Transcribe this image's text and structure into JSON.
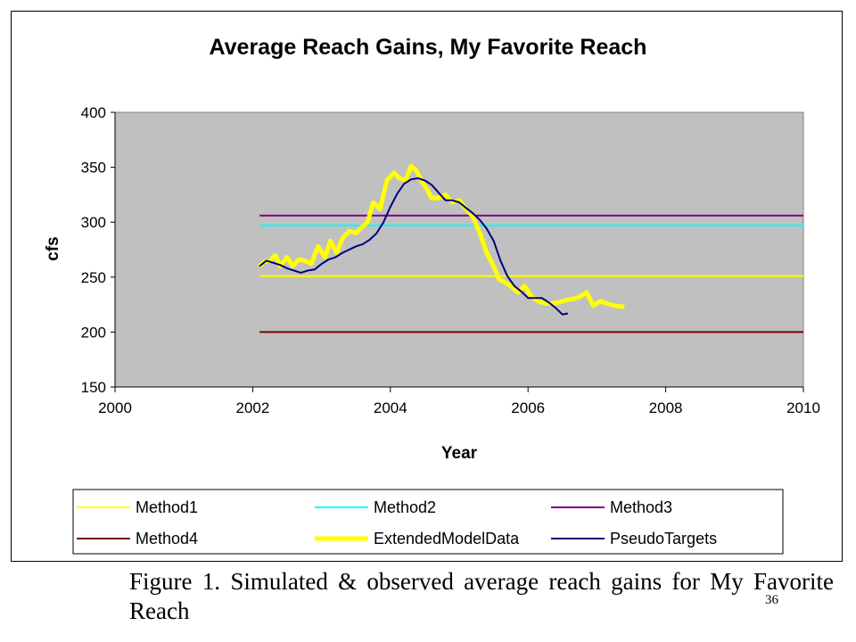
{
  "chart_data": {
    "type": "line",
    "title": "Average Reach Gains, My Favorite Reach",
    "xlabel": "Year",
    "ylabel": "cfs",
    "xlim": [
      2000,
      2010
    ],
    "ylim": [
      150,
      400
    ],
    "xticks": [
      "2000",
      "2002",
      "2004",
      "2006",
      "2008",
      "2010"
    ],
    "yticks": [
      "150",
      "200",
      "250",
      "300",
      "350",
      "400"
    ],
    "plot_background": "#c0c0c0",
    "legend_position": "bottom",
    "series": [
      {
        "name": "Method1",
        "color": "#ffff00",
        "style": "thin",
        "x": [
          2002.1,
          2010
        ],
        "y": [
          251,
          251
        ]
      },
      {
        "name": "Method2",
        "color": "#00ffff",
        "style": "thin",
        "x": [
          2002.1,
          2010
        ],
        "y": [
          297,
          297
        ]
      },
      {
        "name": "Method3",
        "color": "#800080",
        "style": "thin",
        "x": [
          2002.1,
          2010
        ],
        "y": [
          306,
          306
        ]
      },
      {
        "name": "Method4",
        "color": "#800000",
        "style": "thin",
        "x": [
          2002.1,
          2010
        ],
        "y": [
          200,
          200
        ]
      },
      {
        "name": "ExtendedModelData",
        "color": "#ffff00",
        "style": "thick",
        "x": [
          2002.1,
          2002.17,
          2002.25,
          2002.33,
          2002.4,
          2002.5,
          2002.58,
          2002.67,
          2002.75,
          2002.85,
          2002.95,
          2003.05,
          2003.13,
          2003.22,
          2003.3,
          2003.4,
          2003.5,
          2003.58,
          2003.67,
          2003.75,
          2003.85,
          2003.95,
          2004.05,
          2004.13,
          2004.22,
          2004.3,
          2004.38,
          2004.45,
          2004.53,
          2004.6,
          2004.7,
          2004.8,
          2004.9,
          2005.0,
          2005.1,
          2005.2,
          2005.3,
          2005.4,
          2005.5,
          2005.58,
          2005.67,
          2005.75,
          2005.85,
          2005.95,
          2006.05,
          2006.15,
          2006.25,
          2006.35,
          2006.45,
          2006.55,
          2006.65,
          2006.75,
          2006.85,
          2006.95,
          2007.05,
          2007.15,
          2007.25,
          2007.4
        ],
        "y": [
          260,
          264,
          265,
          270,
          260,
          268,
          260,
          266,
          265,
          262,
          278,
          268,
          283,
          272,
          285,
          292,
          290,
          295,
          300,
          318,
          312,
          338,
          345,
          340,
          338,
          351,
          347,
          338,
          330,
          322,
          322,
          325,
          318,
          320,
          312,
          305,
          290,
          272,
          260,
          248,
          245,
          242,
          236,
          242,
          232,
          228,
          226,
          226,
          227,
          229,
          230,
          232,
          236,
          224,
          228,
          226,
          224,
          223
        ]
      },
      {
        "name": "PseudoTargets",
        "color": "#000080",
        "style": "thin",
        "x": [
          2002.1,
          2002.2,
          2002.3,
          2002.4,
          2002.5,
          2002.6,
          2002.7,
          2002.8,
          2002.9,
          2003.0,
          2003.1,
          2003.2,
          2003.3,
          2003.4,
          2003.5,
          2003.6,
          2003.7,
          2003.8,
          2003.9,
          2004.0,
          2004.1,
          2004.2,
          2004.3,
          2004.4,
          2004.5,
          2004.6,
          2004.7,
          2004.8,
          2004.9,
          2005.0,
          2005.1,
          2005.2,
          2005.3,
          2005.4,
          2005.5,
          2005.6,
          2005.7,
          2005.8,
          2005.9,
          2006.0,
          2006.1,
          2006.2,
          2006.3,
          2006.4,
          2006.5,
          2006.58
        ],
        "y": [
          260,
          265,
          263,
          261,
          258,
          256,
          254,
          256,
          257,
          262,
          266,
          268,
          272,
          275,
          278,
          280,
          284,
          290,
          300,
          314,
          326,
          335,
          339,
          340,
          338,
          334,
          327,
          320,
          320,
          318,
          313,
          308,
          302,
          294,
          283,
          265,
          251,
          242,
          237,
          231,
          231,
          231,
          227,
          222,
          216,
          217
        ]
      }
    ]
  },
  "caption": {
    "text": "Figure 1.  Simulated & observed average reach gains for My Favorite Reach"
  },
  "page_number": "36"
}
